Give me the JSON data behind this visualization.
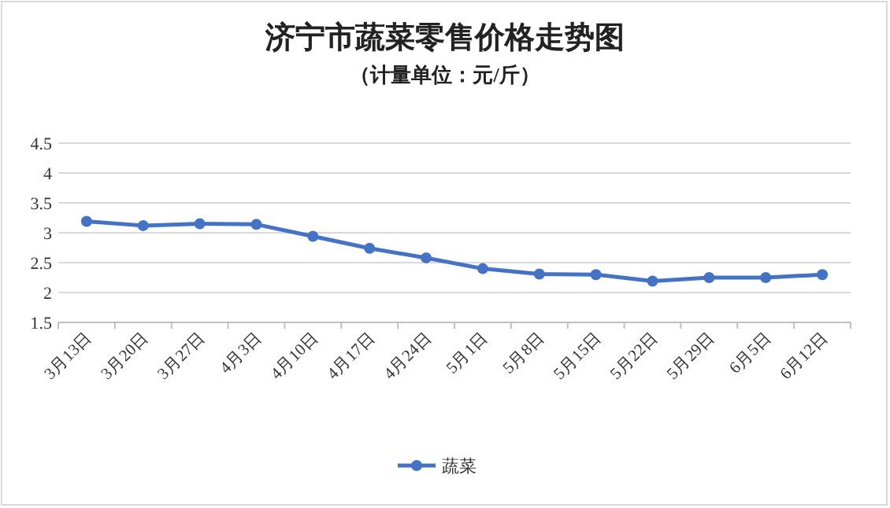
{
  "chart_data": {
    "type": "line",
    "title": "济宁市蔬菜零售价格走势图",
    "subtitle": "（计量单位：元/斤）",
    "categories": [
      "3月13日",
      "3月20日",
      "3月27日",
      "4月3日",
      "4月10日",
      "4月17日",
      "4月24日",
      "5月1日",
      "5月8日",
      "5月15日",
      "5月22日",
      "5月29日",
      "6月5日",
      "6月12日"
    ],
    "series": [
      {
        "name": "蔬菜",
        "color": "#4472c4",
        "values": [
          3.19,
          3.12,
          3.15,
          3.14,
          2.94,
          2.74,
          2.58,
          2.4,
          2.31,
          2.3,
          2.19,
          2.25,
          2.25,
          2.3
        ]
      }
    ],
    "ylim": [
      1.5,
      4.5
    ],
    "yticks": [
      1.5,
      2,
      2.5,
      3,
      3.5,
      4,
      4.5
    ],
    "grid": "y",
    "legend": "bottom",
    "marker": "circle",
    "line_style": "solid"
  }
}
